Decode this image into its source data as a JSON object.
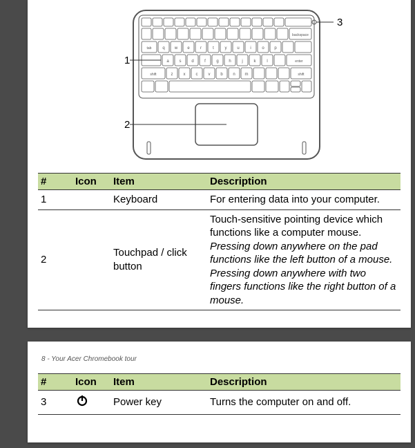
{
  "diagram": {
    "callouts": [
      "1",
      "2",
      "3"
    ]
  },
  "table1": {
    "headers": [
      "#",
      "Icon",
      "Item",
      "Description"
    ],
    "rows": [
      {
        "num": "1",
        "icon": "",
        "item": "Keyboard",
        "desc_plain": "For entering data into your computer.",
        "desc_italic": ""
      },
      {
        "num": "2",
        "icon": "",
        "item": "Touchpad / click button",
        "desc_plain": "Touch-sensitive pointing device which functions like a computer mouse.",
        "desc_italic": "Pressing down anywhere on the pad functions like the left button of a mouse.\nPressing down anywhere with two fingers functions like the right button of a mouse."
      }
    ]
  },
  "page2_header": "8 - Your Acer Chromebook tour",
  "table2": {
    "headers": [
      "#",
      "Icon",
      "Item",
      "Description"
    ],
    "rows": [
      {
        "num": "3",
        "icon": "power",
        "item": "Power key",
        "desc_plain": "Turns the computer on and off.",
        "desc_italic": ""
      }
    ]
  },
  "colors": {
    "header_bg": "#c8dca0",
    "page_bg": "#ffffff",
    "viewer_bg": "#4a4a4a",
    "border": "#333333"
  }
}
